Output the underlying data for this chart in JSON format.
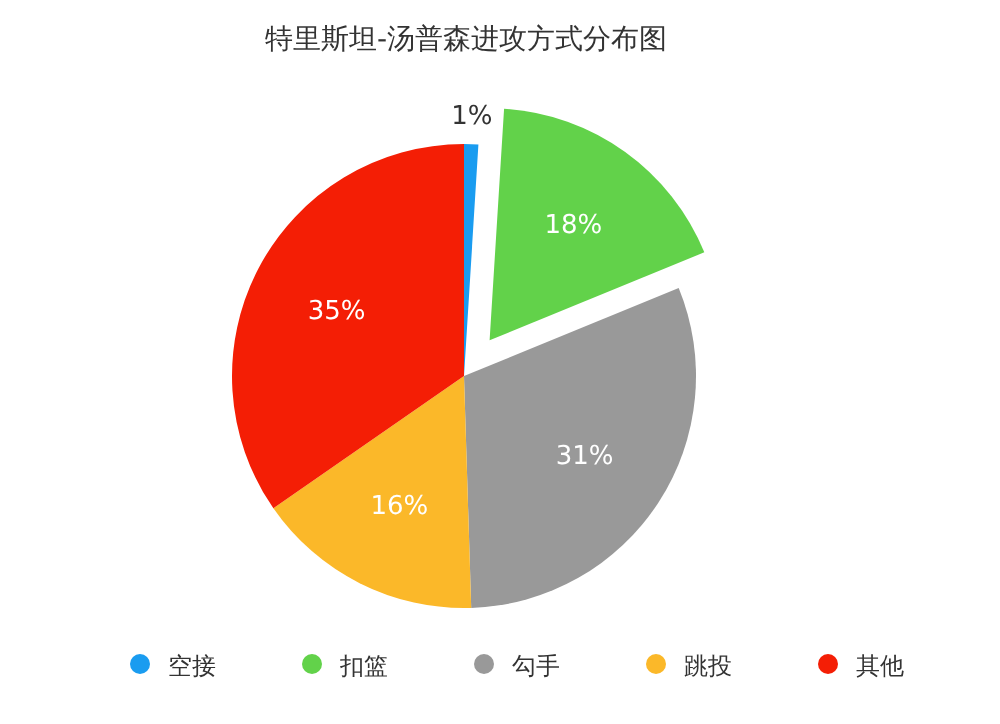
{
  "chart_data": {
    "type": "pie",
    "title": "特里斯坦-汤普森进攻方式分布图",
    "categories": [
      "空接",
      "扣篮",
      "勾手",
      "跳投",
      "其他"
    ],
    "values": [
      1,
      18,
      31,
      16,
      35
    ],
    "colors": [
      "#1a9cf0",
      "#62d24a",
      "#999999",
      "#fbb829",
      "#f41e05"
    ],
    "value_labels": [
      "1%",
      "18%",
      "31%",
      "16%",
      "35%"
    ],
    "legend": "bottom"
  }
}
